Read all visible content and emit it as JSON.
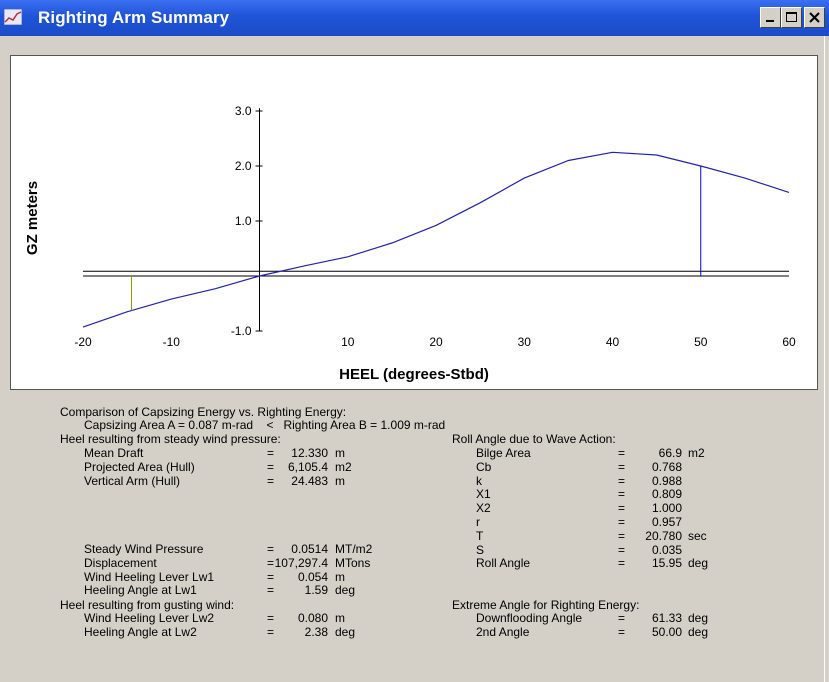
{
  "window": {
    "title": "Righting Arm Summary",
    "icon": "chart-window-icon",
    "controls": [
      "minimize-icon",
      "maximize-icon",
      "close-icon"
    ]
  },
  "chart_data": {
    "type": "line",
    "xlabel": "HEEL (degrees-Stbd)",
    "ylabel": "GZ meters",
    "xlim": [
      -20,
      60
    ],
    "ylim": [
      -1.0,
      3.0
    ],
    "x_ticks": [
      "-20",
      "-10",
      "10",
      "20",
      "30",
      "40",
      "50",
      "60"
    ],
    "y_ticks": [
      "3.0",
      "2.0",
      "1.0",
      "-1.0"
    ],
    "grid": false,
    "series": [
      {
        "x": [
          -20,
          -15,
          -10,
          -5,
          0,
          5,
          10,
          15,
          20,
          25,
          30,
          35,
          40,
          45,
          50,
          55,
          60
        ],
        "y": [
          -0.93,
          -0.65,
          -0.42,
          -0.23,
          0.0,
          0.18,
          0.35,
          0.6,
          0.92,
          1.33,
          1.78,
          2.1,
          2.25,
          2.2,
          2.0,
          1.78,
          1.52
        ]
      }
    ],
    "reference_line": {
      "y": 0.087
    },
    "markers": [
      {
        "x": -14.5,
        "color": "#8a9a00"
      },
      {
        "x": 50.0,
        "color": "#0000ff"
      }
    ]
  },
  "report": {
    "comparison_heading": "Comparison of Capsizing Energy vs. Righting Energy:",
    "comparison_line": "Capsizing Area A = 0.087 m-rad    <   Righting Area B = 1.009 m-rad",
    "steady_heading": "Heel resulting from steady wind pressure:",
    "steady_rows": [
      {
        "label": "Mean Draft",
        "eq": "=",
        "value": "12.330",
        "unit": "m"
      },
      {
        "label": "Projected Area (Hull)",
        "eq": "=",
        "value": "6,105.4",
        "unit": "m2"
      },
      {
        "label": "Vertical Arm (Hull)",
        "eq": "=",
        "value": "24.483",
        "unit": "m"
      }
    ],
    "steady_rows2": [
      {
        "label": "Steady Wind Pressure",
        "eq": "=",
        "value": "0.0514",
        "unit": "MT/m2"
      },
      {
        "label": "Displacement",
        "eq": "=",
        "value": "107,297.4",
        "unit": "MTons"
      },
      {
        "label": "Wind Heeling Lever Lw1",
        "eq": "=",
        "value": "0.054",
        "unit": "m"
      },
      {
        "label": "Heeling Angle at Lw1",
        "eq": "=",
        "value": "1.59",
        "unit": "deg"
      }
    ],
    "gust_heading": "Heel resulting from gusting wind:",
    "gust_rows": [
      {
        "label": "Wind Heeling Lever Lw2",
        "eq": "=",
        "value": "0.080",
        "unit": "m"
      },
      {
        "label": "Heeling Angle at Lw2",
        "eq": "=",
        "value": "2.38",
        "unit": "deg"
      }
    ],
    "roll_heading": "Roll Angle due to Wave Action:",
    "roll_rows": [
      {
        "label": "Bilge Area",
        "eq": "=",
        "value": "66.9",
        "unit": "m2"
      },
      {
        "label": "Cb",
        "eq": "=",
        "value": "0.768",
        "unit": ""
      },
      {
        "label": "k",
        "eq": "=",
        "value": "0.988",
        "unit": ""
      },
      {
        "label": "X1",
        "eq": "=",
        "value": "0.809",
        "unit": ""
      },
      {
        "label": "X2",
        "eq": "=",
        "value": "1.000",
        "unit": ""
      },
      {
        "label": "r",
        "eq": "=",
        "value": "0.957",
        "unit": ""
      },
      {
        "label": "T",
        "eq": "=",
        "value": "20.780",
        "unit": "sec"
      },
      {
        "label": "S",
        "eq": "=",
        "value": "0.035",
        "unit": ""
      },
      {
        "label": "Roll Angle",
        "eq": "=",
        "value": "15.95",
        "unit": "deg"
      }
    ],
    "extreme_heading": "Extreme Angle for Righting Energy:",
    "extreme_rows": [
      {
        "label": "Downflooding Angle",
        "eq": "=",
        "value": "61.33",
        "unit": "deg"
      },
      {
        "label": "2nd Angle",
        "eq": "=",
        "value": "50.00",
        "unit": "deg"
      }
    ]
  }
}
